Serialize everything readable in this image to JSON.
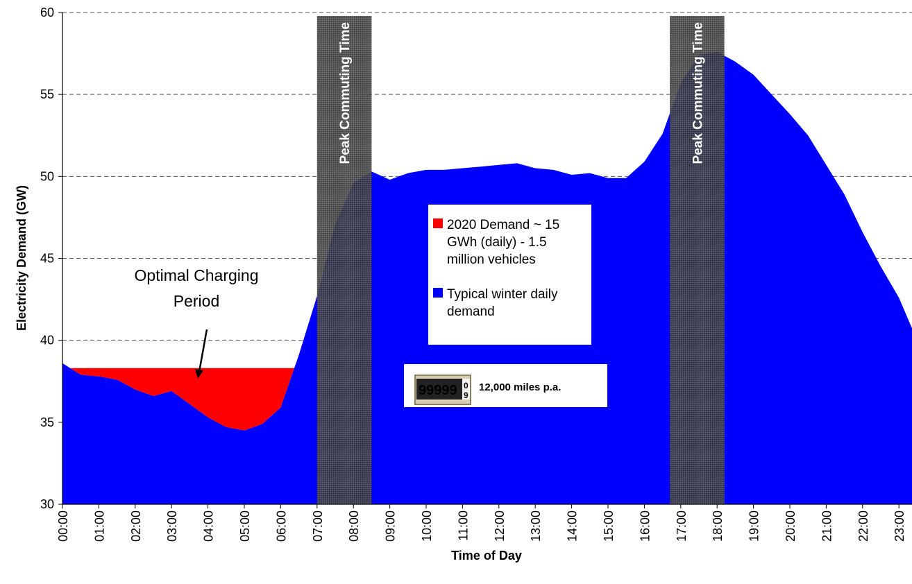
{
  "chart_data": {
    "type": "area",
    "xlabel": "Time of Day",
    "ylabel": "Electricity Demand (GW)",
    "ylim": [
      30,
      60
    ],
    "yticks": [
      "30",
      "35",
      "40",
      "45",
      "50",
      "55",
      "60"
    ],
    "grid": "horizontal dashed",
    "x_categories": [
      "00:00",
      "01:00",
      "02:00",
      "03:00",
      "04:00",
      "05:00",
      "06:00",
      "07:00",
      "08:00",
      "09:00",
      "10:00",
      "11:00",
      "12:00",
      "13:00",
      "14:00",
      "15:00",
      "16:00",
      "17:00",
      "18:00",
      "19:00",
      "20:00",
      "21:00",
      "22:00",
      "23:00"
    ],
    "series": [
      {
        "name": "Typical winter daily demand",
        "color": "#0000ff",
        "x_hours": [
          0,
          0.5,
          1,
          1.5,
          2,
          2.5,
          3,
          3.5,
          4,
          4.5,
          5,
          5.5,
          6,
          6.5,
          7,
          7.5,
          8,
          8.5,
          9,
          9.5,
          10,
          10.5,
          11,
          11.5,
          12,
          12.5,
          13,
          13.5,
          14,
          14.5,
          15,
          15.5,
          16,
          16.5,
          17,
          17.5,
          18,
          18.5,
          19,
          19.5,
          20,
          20.5,
          21,
          21.5,
          22,
          22.5,
          23,
          23.5
        ],
        "values": [
          38.6,
          37.9,
          37.8,
          37.6,
          37.0,
          36.6,
          36.9,
          36.1,
          35.3,
          34.7,
          34.5,
          34.9,
          35.9,
          39.1,
          42.7,
          47.1,
          49.6,
          50.3,
          49.8,
          50.2,
          50.4,
          50.4,
          50.5,
          50.6,
          50.7,
          50.8,
          50.5,
          50.4,
          50.1,
          50.2,
          49.9,
          49.9,
          50.9,
          52.6,
          55.7,
          57.4,
          57.6,
          57.0,
          56.2,
          55.0,
          53.8,
          52.5,
          50.7,
          48.9,
          46.6,
          44.5,
          42.6,
          40.0
        ]
      },
      {
        "name": "2020 Demand ~ 15 GWh (daily) - 1.5 million vehicles",
        "color": "#ff0000",
        "fill_to_level": 38.3,
        "x_range_hours": [
          0,
          7
        ]
      }
    ],
    "shaded_bands": [
      {
        "label": "Peak Commuting Time",
        "x_start_hours": 7.0,
        "x_end_hours": 8.5
      },
      {
        "label": "Peak Commuting Time",
        "x_start_hours": 16.7,
        "x_end_hours": 18.2
      }
    ],
    "legend": {
      "placement": "center",
      "entries": [
        {
          "label_lines": [
            "2020 Demand ~ 15",
            "GWh (daily) - 1.5",
            "million vehicles"
          ],
          "color": "#ff0000"
        },
        {
          "label_lines": [
            "Typical winter daily",
            "demand"
          ],
          "color": "#0000ff"
        }
      ]
    },
    "annotations": {
      "optimal": [
        "Optimal Charging",
        "Period"
      ],
      "odometer_label": "12,000 miles p.a.",
      "odometer_digits": "99999"
    }
  }
}
